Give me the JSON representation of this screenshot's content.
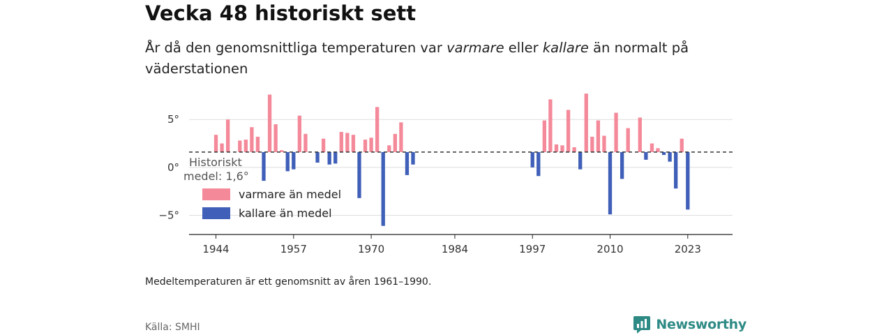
{
  "header": {
    "title": "Vecka 48 historiskt sett",
    "subtitle_part1": "År då den genomsnittliga temperaturen var ",
    "subtitle_warm": "varmare",
    "subtitle_part2": " eller ",
    "subtitle_cold": "kallare",
    "subtitle_part3": " än normalt på väderstationen"
  },
  "footer": {
    "note": "Medeltemperaturen är ett genomsnitt av åren 1961–1990.",
    "source": "Källa: SMHI",
    "brand": "Newsworthy"
  },
  "colors": {
    "warm": "#f4899a",
    "cold": "#3f5fb8",
    "brand": "#2e8a85"
  },
  "chart_data": {
    "type": "bar",
    "mean": 1.6,
    "mean_label_line1": "Historiskt",
    "mean_label_line2": "medel: 1,6°",
    "ylim": [
      -7,
      8
    ],
    "xlim": [
      1939.5,
      2030.5
    ],
    "y_ticks": [
      {
        "value": 5,
        "label": "5°"
      },
      {
        "value": 0,
        "label": "0°"
      },
      {
        "value": -5,
        "label": "−5°"
      }
    ],
    "x_ticks": [
      {
        "value": 1944,
        "label": "1944"
      },
      {
        "value": 1957,
        "label": "1957"
      },
      {
        "value": 1970,
        "label": "1970"
      },
      {
        "value": 1984,
        "label": "1984"
      },
      {
        "value": 1997,
        "label": "1997"
      },
      {
        "value": 2010,
        "label": "2010"
      },
      {
        "value": 2023,
        "label": "2023"
      }
    ],
    "legend": [
      {
        "name": "varmare än medel",
        "kind": "warm"
      },
      {
        "name": "kallare än medel",
        "kind": "cold"
      }
    ],
    "years": [
      1944,
      1945,
      1946,
      1948,
      1949,
      1950,
      1951,
      1952,
      1953,
      1954,
      1955,
      1956,
      1957,
      1958,
      1959,
      1960,
      1961,
      1962,
      1963,
      1964,
      1965,
      1966,
      1967,
      1968,
      1969,
      1970,
      1971,
      1972,
      1973,
      1974,
      1975,
      1976,
      1977,
      1978,
      1997,
      1998,
      1999,
      2000,
      2001,
      2002,
      2003,
      2004,
      2005,
      2006,
      2007,
      2008,
      2009,
      2010,
      2011,
      2012,
      2013,
      2014,
      2015,
      2016,
      2017,
      2018,
      2019,
      2020,
      2021,
      2022,
      2023
    ],
    "values": [
      3.4,
      2.5,
      5.0,
      2.8,
      2.9,
      4.2,
      3.2,
      -1.4,
      7.6,
      4.5,
      1.8,
      -0.4,
      -0.2,
      5.4,
      3.5,
      1.6,
      0.5,
      3.0,
      0.3,
      0.4,
      3.7,
      3.6,
      3.4,
      -3.2,
      2.9,
      3.1,
      6.3,
      -6.1,
      2.3,
      3.5,
      4.7,
      -0.8,
      0.3,
      1.6,
      0.0,
      -0.9,
      4.9,
      7.1,
      2.4,
      2.3,
      6.0,
      2.1,
      -0.2,
      7.7,
      3.2,
      4.9,
      3.3,
      -4.9,
      5.7,
      -1.2,
      4.1,
      1.6,
      5.2,
      0.8,
      2.5,
      2.0,
      1.3,
      0.6,
      -2.2,
      3.0,
      -4.4
    ]
  }
}
